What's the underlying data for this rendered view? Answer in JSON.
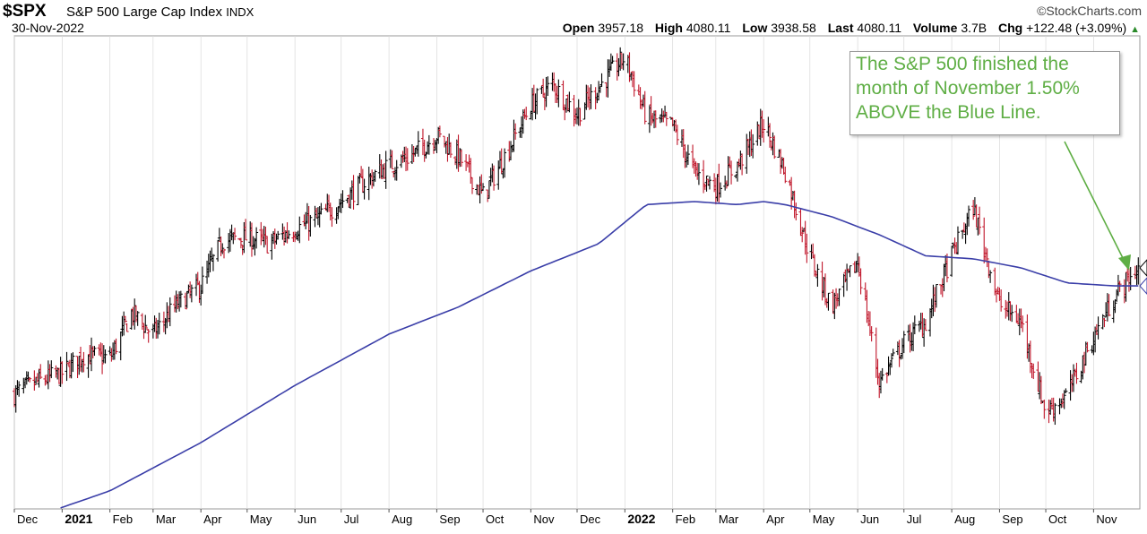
{
  "header": {
    "symbol": "$SPX",
    "name": "S&P 500 Large Cap Index",
    "exchange": "INDX",
    "date": "30-Nov-2022",
    "brand": "©StockCharts.com",
    "open_label": "Open",
    "open": "3957.18",
    "high_label": "High",
    "high": "4080.11",
    "low_label": "Low",
    "low": "3938.58",
    "last_label": "Last",
    "last": "4080.11",
    "volume_label": "Volume",
    "volume": "3.7B",
    "chg_label": "Chg",
    "chg": "+122.48 (+3.09%)",
    "chg_arrow": "▲"
  },
  "annotation": {
    "lines": [
      "The S&P 500 finished the",
      "month of November 1.50%",
      "ABOVE the Blue Line."
    ]
  },
  "colors": {
    "up": "#000000",
    "down": "#c0162a",
    "ma": "#3a3ea8",
    "annotation": "#5fae45",
    "grid": "#d9d9d9"
  },
  "chart_data": {
    "type": "line",
    "series": [
      {
        "x": [
          "2020-12-01",
          "2020-12-15",
          "2021-01-01",
          "2021-01-15",
          "2021-02-01",
          "2021-02-15",
          "2021-03-01",
          "2021-03-15",
          "2021-04-01",
          "2021-04-15",
          "2021-05-01",
          "2021-05-15",
          "2021-06-01",
          "2021-06-15",
          "2021-07-01",
          "2021-07-15",
          "2021-08-01",
          "2021-08-15",
          "2021-09-01",
          "2021-09-15",
          "2021-10-01",
          "2021-10-15",
          "2021-11-01",
          "2021-11-15",
          "2021-12-01",
          "2021-12-15",
          "2022-01-01",
          "2022-01-15",
          "2022-02-01",
          "2022-02-15",
          "2022-03-01",
          "2022-03-15",
          "2022-04-01",
          "2022-04-15",
          "2022-05-01",
          "2022-05-15",
          "2022-06-01",
          "2022-06-15",
          "2022-07-01",
          "2022-07-15",
          "2022-08-01",
          "2022-08-15",
          "2022-09-01",
          "2022-09-15",
          "2022-10-01",
          "2022-10-15",
          "2022-11-01",
          "2022-11-15",
          "2022-11-30"
        ],
        "y": [
          3660,
          3700,
          3730,
          3790,
          3780,
          3930,
          3860,
          3950,
          4020,
          4170,
          4180,
          4160,
          4210,
          4240,
          4300,
          4360,
          4420,
          4450,
          4520,
          4450,
          4320,
          4450,
          4620,
          4690,
          4590,
          4680,
          4780,
          4580,
          4550,
          4400,
          4350,
          4420,
          4560,
          4400,
          4120,
          3950,
          4100,
          3700,
          3830,
          3900,
          4120,
          4280,
          3960,
          3900,
          3600,
          3660,
          3850,
          3990,
          4080
        ]
      },
      {
        "name": "",
        "x": [
          "2020-12-01",
          "2021-02-01",
          "2021-04-01",
          "2021-06-01",
          "2021-08-01",
          "2021-09-15",
          "2021-11-01",
          "2021-12-15",
          "2022-01-15",
          "2022-02-15",
          "2022-03-15",
          "2022-04-01",
          "2022-04-15",
          "2022-05-15",
          "2022-06-15",
          "2022-07-15",
          "2022-08-15",
          "2022-09-15",
          "2022-10-15",
          "2022-11-15",
          "2022-11-30"
        ],
        "y": [
          3230,
          3340,
          3500,
          3690,
          3860,
          3950,
          4070,
          4160,
          4290,
          4300,
          4290,
          4300,
          4290,
          4250,
          4190,
          4120,
          4110,
          4080,
          4030,
          4020,
          4020
        ]
      }
    ],
    "x_ticks": [
      "Dec",
      "2021",
      "Feb",
      "Mar",
      "Apr",
      "May",
      "Jun",
      "Jul",
      "Aug",
      "Sep",
      "Oct",
      "Nov",
      "Dec",
      "2022",
      "Feb",
      "Mar",
      "Apr",
      "May",
      "Jun",
      "Jul",
      "Aug",
      "Sep",
      "Oct",
      "Nov"
    ],
    "year_ticks": [
      "2021",
      "2022"
    ],
    "ylim": [
      3280,
      4850
    ]
  }
}
